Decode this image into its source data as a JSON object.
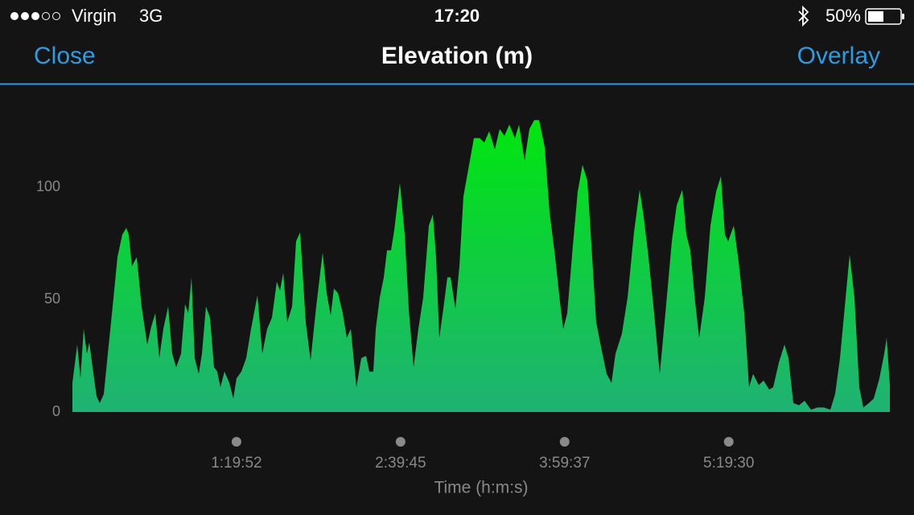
{
  "status_bar": {
    "carrier": "Virgin",
    "network": "3G",
    "time": "17:20",
    "battery": "50%"
  },
  "nav": {
    "left": "Close",
    "title": "Elevation (m)",
    "right": "Overlay"
  },
  "chart_data": {
    "type": "area",
    "x_label": "Time (h:m:s)",
    "x": [
      0,
      141,
      235,
      329,
      423,
      494,
      588,
      705,
      799,
      917,
      1034,
      1175,
      1316,
      1457,
      1575,
      1645,
      1739,
      1880,
      2021,
      2186,
      2303,
      2421,
      2538,
      2656,
      2797,
      2914,
      3032,
      3173,
      3290,
      3384,
      3478,
      3572,
      3690,
      3784,
      3901,
      4019,
      4136,
      4230,
      4324,
      4442,
      4583,
      4700,
      4794,
      4935,
      5076,
      5217,
      5405,
      5546,
      5687,
      5828,
      5969,
      6063,
      6157,
      6275,
      6416,
      6533,
      6651,
      6815,
      6956,
      7121,
      7309,
      7426,
      7544,
      7638,
      7755,
      7896,
      8014,
      8131,
      8296,
      8437,
      8578,
      8672,
      8789,
      8860,
      8977,
      9095,
      9189,
      9306,
      9400,
      9565,
      9706,
      9823,
      9964,
      10105,
      10246,
      10411,
      10528,
      10622,
      10716,
      10834,
      10951,
      11045,
      11186,
      11304,
      11421,
      11562,
      11727,
      11891,
      12032,
      12173,
      12338,
      12479,
      12620,
      12761,
      12925,
      13043,
      13207,
      13348,
      13489,
      13630,
      13795,
      13936,
      14100,
      14241,
      14335,
      14453,
      14617,
      14758,
      14899,
      15040,
      15181,
      15299,
      15440,
      15604,
      15745,
      15863,
      16051,
      16215,
      16403,
      16568,
      16685,
      16826,
      16991,
      17155,
      17320,
      17508,
      17649,
      17813,
      17931,
      18048,
      18189,
      18307,
      18471,
      18636,
      18800,
      18941,
      19059,
      19153,
      19317,
      19458,
      19623,
      19764,
      19881,
      20046,
      20187,
      20351,
      20469,
      20633,
      20798,
      20915,
      21056,
      21221,
      21385,
      21573,
      21761,
      21949,
      22137,
      22278,
      22419,
      22560,
      22701,
      22842,
      22983,
      23101,
      23265,
      23406,
      23571,
      23712,
      23782,
      23876
    ],
    "values": [
      13,
      30,
      15,
      37,
      26,
      31,
      20,
      7,
      4,
      8,
      26,
      47,
      69,
      79,
      82,
      79,
      65,
      69,
      47,
      30,
      38,
      44,
      24,
      37,
      47,
      26,
      20,
      26,
      48,
      44,
      60,
      24,
      17,
      26,
      47,
      42,
      20,
      18,
      11,
      18,
      13,
      6,
      15,
      18,
      24,
      37,
      52,
      26,
      37,
      42,
      58,
      54,
      62,
      40,
      47,
      76,
      80,
      40,
      23,
      47,
      71,
      53,
      43,
      55,
      53,
      44,
      33,
      37,
      11,
      24,
      25,
      18,
      18,
      37,
      51,
      60,
      72,
      72,
      81,
      102,
      79,
      46,
      20,
      37,
      51,
      83,
      88,
      69,
      33,
      46,
      60,
      60,
      46,
      65,
      96,
      108,
      122,
      122,
      120,
      125,
      117,
      126,
      123,
      128,
      122,
      128,
      112,
      126,
      130,
      130,
      118,
      89,
      69,
      49,
      37,
      44,
      74,
      98,
      110,
      103,
      69,
      40,
      29,
      17,
      13,
      26,
      35,
      51,
      80,
      99,
      87,
      69,
      44,
      17,
      44,
      76,
      92,
      99,
      79,
      72,
      49,
      33,
      51,
      83,
      98,
      105,
      79,
      76,
      83,
      67,
      44,
      11,
      17,
      12,
      14,
      10,
      11,
      22,
      30,
      24,
      4,
      3,
      5,
      1,
      2,
      2,
      1,
      8,
      24,
      47,
      70,
      51,
      11,
      2,
      4,
      6,
      15,
      26,
      33,
      12
    ],
    "xlim": [
      0,
      23876
    ],
    "xticks": [
      {
        "value": 4792,
        "label": "1:19:52"
      },
      {
        "value": 9585,
        "label": "2:39:45"
      },
      {
        "value": 14377,
        "label": "3:59:37"
      },
      {
        "value": 19170,
        "label": "5:19:30"
      }
    ],
    "ylim": [
      0,
      135
    ],
    "yticks": [
      0,
      50,
      100
    ],
    "gradient": [
      "#00e60f",
      "#1fb274"
    ]
  }
}
